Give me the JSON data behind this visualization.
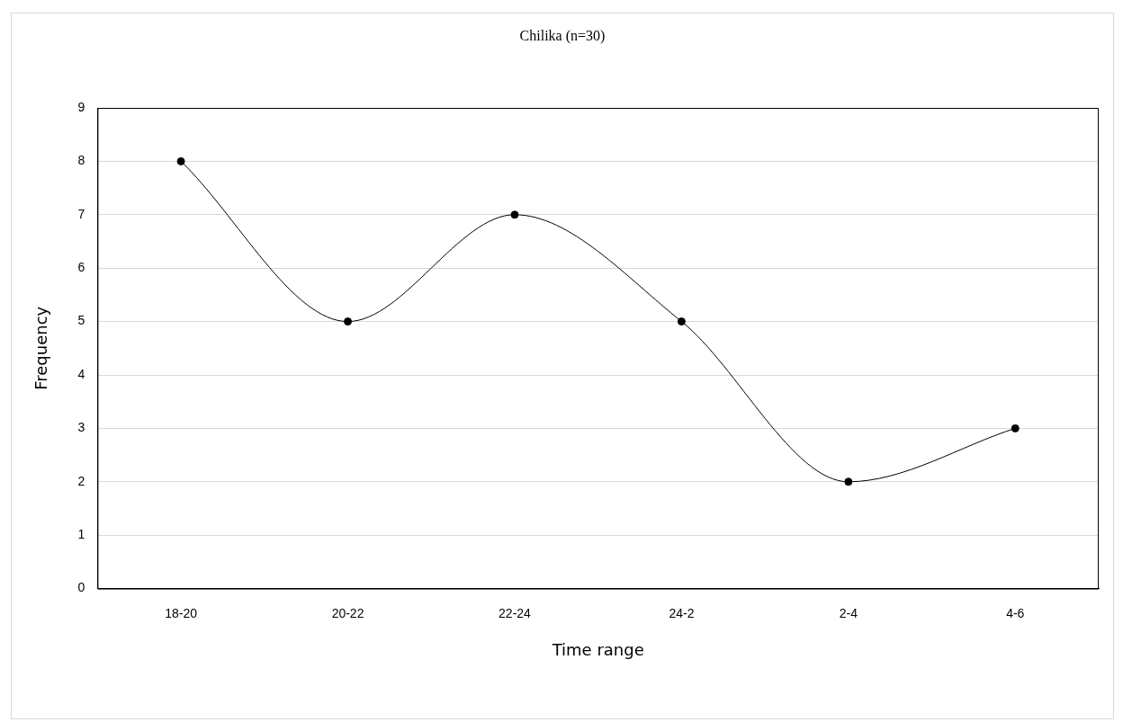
{
  "chart_data": {
    "type": "line",
    "title": "Chilika  (n=30)",
    "xlabel": "Time range",
    "ylabel": "Frequency",
    "categories": [
      "18-20",
      "20-22",
      "22-24",
      "24-2",
      "2-4",
      "4-6"
    ],
    "values": [
      8,
      5,
      7,
      5,
      2,
      3
    ],
    "color": "#000000",
    "ylim": [
      0,
      9
    ],
    "yticks": [
      0,
      1,
      2,
      3,
      4,
      5,
      6,
      7,
      8,
      9
    ],
    "grid": "y",
    "marker": "circle"
  }
}
